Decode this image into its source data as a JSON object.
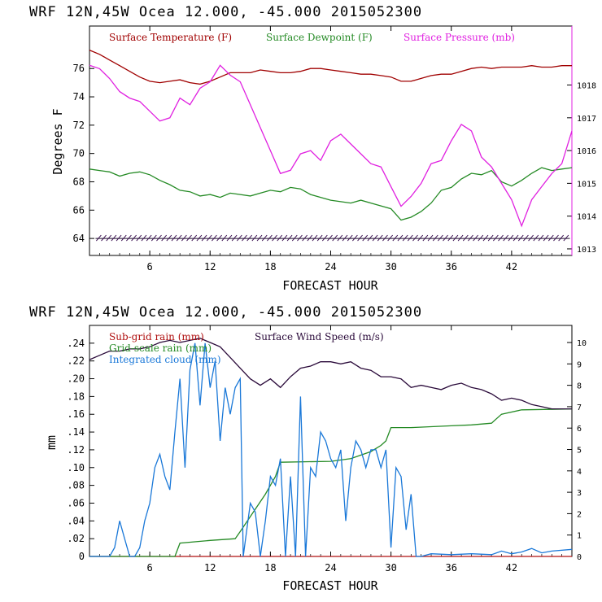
{
  "chart_data": [
    {
      "type": "line",
      "title": "WRF   12N,45W Ocea  12.000, -45.000  2015052300",
      "xlabel": "FORECAST HOUR",
      "ylabel": "Degrees F",
      "xlim": [
        0,
        48
      ],
      "ylim": [
        62.8,
        79
      ],
      "y2lim": [
        1012.8,
        1019.8
      ],
      "xticks": [
        "6",
        "12",
        "18",
        "24",
        "30",
        "36",
        "42"
      ],
      "yticks": [
        "64",
        "66",
        "68",
        "70",
        "72",
        "74",
        "76"
      ],
      "y2ticks": [
        "1013",
        "1014",
        "1015",
        "1016",
        "1017",
        "1018"
      ],
      "series": [
        {
          "name": "Surface Temperature (F)",
          "color": "#a00000",
          "axis": "left",
          "x": [
            0,
            1,
            2,
            3,
            4,
            5,
            6,
            7,
            8,
            9,
            10,
            11,
            12,
            13,
            14,
            15,
            16,
            17,
            18,
            19,
            20,
            21,
            22,
            23,
            24,
            25,
            26,
            27,
            28,
            29,
            30,
            31,
            32,
            33,
            34,
            35,
            36,
            37,
            38,
            39,
            40,
            41,
            42,
            43,
            44,
            45,
            46,
            47,
            48
          ],
          "values": [
            77.3,
            77.0,
            76.6,
            76.2,
            75.8,
            75.4,
            75.1,
            75.0,
            75.1,
            75.2,
            75.0,
            74.9,
            75.1,
            75.4,
            75.7,
            75.7,
            75.7,
            75.9,
            75.8,
            75.7,
            75.7,
            75.8,
            76.0,
            76.0,
            75.9,
            75.8,
            75.7,
            75.6,
            75.6,
            75.5,
            75.4,
            75.1,
            75.1,
            75.3,
            75.5,
            75.6,
            75.6,
            75.8,
            76.0,
            76.1,
            76.0,
            76.1,
            76.1,
            76.1,
            76.2,
            76.1,
            76.1,
            76.2,
            76.2
          ]
        },
        {
          "name": "Surface Dewpoint (F)",
          "color": "#248a24",
          "axis": "left",
          "x": [
            0,
            1,
            2,
            3,
            4,
            5,
            6,
            7,
            8,
            9,
            10,
            11,
            12,
            13,
            14,
            15,
            16,
            17,
            18,
            19,
            20,
            21,
            22,
            23,
            24,
            25,
            26,
            27,
            28,
            29,
            30,
            31,
            32,
            33,
            34,
            35,
            36,
            37,
            38,
            39,
            40,
            41,
            42,
            43,
            44,
            45,
            46,
            47,
            48
          ],
          "values": [
            68.9,
            68.8,
            68.7,
            68.4,
            68.6,
            68.7,
            68.5,
            68.1,
            67.8,
            67.4,
            67.3,
            67.0,
            67.1,
            66.9,
            67.2,
            67.1,
            67.0,
            67.2,
            67.4,
            67.3,
            67.6,
            67.5,
            67.1,
            66.9,
            66.7,
            66.6,
            66.5,
            66.7,
            66.5,
            66.3,
            66.1,
            65.3,
            65.5,
            65.9,
            66.5,
            67.4,
            67.6,
            68.2,
            68.6,
            68.5,
            68.8,
            68.0,
            67.7,
            68.1,
            68.6,
            69.0,
            68.8,
            68.9,
            69.0
          ]
        },
        {
          "name": "Surface Pressure (mb)",
          "color": "#e020e0",
          "axis": "right",
          "x": [
            0,
            1,
            2,
            3,
            4,
            5,
            6,
            7,
            8,
            9,
            10,
            11,
            12,
            13,
            14,
            15,
            16,
            17,
            18,
            19,
            20,
            21,
            22,
            23,
            24,
            25,
            26,
            27,
            28,
            29,
            30,
            31,
            32,
            33,
            34,
            35,
            36,
            37,
            38,
            39,
            40,
            41,
            42,
            43,
            44,
            45,
            46,
            47,
            48
          ],
          "values": [
            1018.6,
            1018.5,
            1018.2,
            1017.8,
            1017.6,
            1017.5,
            1017.2,
            1016.9,
            1017.0,
            1017.6,
            1017.4,
            1017.9,
            1018.1,
            1018.6,
            1018.3,
            1018.1,
            1017.4,
            1016.7,
            1016.0,
            1015.3,
            1015.4,
            1015.9,
            1016.0,
            1015.7,
            1016.3,
            1016.5,
            1016.2,
            1015.9,
            1015.6,
            1015.5,
            1014.9,
            1014.3,
            1014.6,
            1015.0,
            1015.6,
            1015.7,
            1016.3,
            1016.8,
            1016.6,
            1015.8,
            1015.5,
            1015.0,
            1014.5,
            1013.7,
            1014.5,
            1014.9,
            1015.3,
            1015.6,
            1016.6
          ]
        }
      ]
    },
    {
      "type": "line",
      "title": "WRF   12N,45W Ocea  12.000, -45.000  2015052300",
      "xlabel": "FORECAST HOUR",
      "ylabel": "mm",
      "xlim": [
        0,
        48
      ],
      "ylim": [
        0,
        0.26
      ],
      "y2lim": [
        0,
        10.8
      ],
      "xticks": [
        "6",
        "12",
        "18",
        "24",
        "30",
        "36",
        "42"
      ],
      "yticks": [
        "0",
        ".02",
        ".04",
        ".06",
        ".08",
        ".10",
        ".12",
        ".14",
        ".16",
        ".18",
        ".20",
        ".22",
        ".24"
      ],
      "y2ticks": [
        "0",
        "1",
        "2",
        "3",
        "4",
        "5",
        "6",
        "7",
        "8",
        "9",
        "10"
      ],
      "series": [
        {
          "name": "Sub-grid rain (mm)",
          "color": "#b01010",
          "axis": "left",
          "x": [
            0,
            48
          ],
          "values": [
            0,
            0
          ]
        },
        {
          "name": "Grid-scale rain (mm)",
          "color": "#248a24",
          "axis": "left",
          "x": [
            0,
            8.5,
            9,
            12,
            14.5,
            15,
            17.5,
            18,
            18.5,
            19,
            24,
            26,
            28,
            29,
            29.5,
            30,
            31,
            32,
            36,
            38,
            40,
            40.5,
            41,
            43,
            48
          ],
          "values": [
            0,
            0,
            0.015,
            0.018,
            0.02,
            0.028,
            0.07,
            0.08,
            0.09,
            0.106,
            0.107,
            0.11,
            0.118,
            0.125,
            0.13,
            0.145,
            0.145,
            0.145,
            0.147,
            0.148,
            0.15,
            0.155,
            0.16,
            0.165,
            0.166
          ]
        },
        {
          "name": "Integrated cloud (mm)",
          "color": "#1a78d8",
          "axis": "left",
          "x": [
            0,
            2,
            2.5,
            3,
            3.5,
            4,
            4.5,
            5,
            5.5,
            6,
            6.5,
            7,
            7.5,
            8,
            8.5,
            9,
            9.5,
            10,
            10.5,
            11,
            11.5,
            12,
            12.5,
            13,
            13.5,
            14,
            14.5,
            15,
            15.3,
            16,
            16.5,
            17,
            17.5,
            18,
            18.5,
            19,
            19.5,
            20,
            20.5,
            21,
            21.5,
            22,
            22.5,
            23,
            23.5,
            24,
            24.5,
            25,
            25.5,
            26,
            26.5,
            27,
            27.5,
            28,
            28.5,
            29,
            29.5,
            30,
            30.5,
            31,
            31.5,
            32,
            32.5,
            33,
            34,
            36,
            38,
            40,
            41,
            42,
            43,
            44,
            45,
            46,
            48
          ],
          "values": [
            0,
            0,
            0.01,
            0.04,
            0.02,
            0.0,
            0.0,
            0.01,
            0.04,
            0.06,
            0.1,
            0.115,
            0.09,
            0.075,
            0.14,
            0.2,
            0.1,
            0.21,
            0.24,
            0.17,
            0.24,
            0.19,
            0.22,
            0.13,
            0.19,
            0.16,
            0.19,
            0.2,
            0.0,
            0.06,
            0.05,
            0.0,
            0.04,
            0.09,
            0.08,
            0.11,
            0.0,
            0.09,
            0.0,
            0.18,
            0.0,
            0.1,
            0.09,
            0.14,
            0.13,
            0.11,
            0.1,
            0.12,
            0.04,
            0.1,
            0.13,
            0.12,
            0.1,
            0.12,
            0.12,
            0.1,
            0.12,
            0.01,
            0.1,
            0.09,
            0.03,
            0.07,
            0.0,
            0.0,
            0.003,
            0.002,
            0.003,
            0.002,
            0.006,
            0.003,
            0.005,
            0.009,
            0.004,
            0.006,
            0.008
          ]
        },
        {
          "name": "Surface Wind Speed (m/s)",
          "color": "#2a0a3a",
          "axis": "right",
          "x": [
            0,
            1,
            2,
            3,
            4,
            5,
            6,
            7,
            8,
            9,
            10,
            11,
            12,
            13,
            14,
            15,
            16,
            17,
            18,
            19,
            20,
            21,
            22,
            23,
            24,
            25,
            26,
            27,
            28,
            29,
            30,
            31,
            32,
            33,
            34,
            35,
            36,
            37,
            38,
            39,
            40,
            41,
            42,
            43,
            44,
            45,
            46,
            47,
            48
          ],
          "values": [
            9.2,
            9.4,
            9.6,
            9.6,
            9.7,
            9.7,
            9.8,
            10.0,
            10.1,
            10.0,
            10.1,
            10.2,
            10.0,
            9.8,
            9.3,
            8.8,
            8.3,
            8.0,
            8.3,
            7.9,
            8.4,
            8.8,
            8.9,
            9.1,
            9.1,
            9.0,
            9.1,
            8.8,
            8.7,
            8.4,
            8.4,
            8.3,
            7.9,
            8.0,
            7.9,
            7.8,
            8.0,
            8.1,
            7.9,
            7.8,
            7.6,
            7.3,
            7.4,
            7.3,
            7.1,
            7.0,
            6.9,
            6.9,
            6.9
          ]
        }
      ]
    }
  ]
}
